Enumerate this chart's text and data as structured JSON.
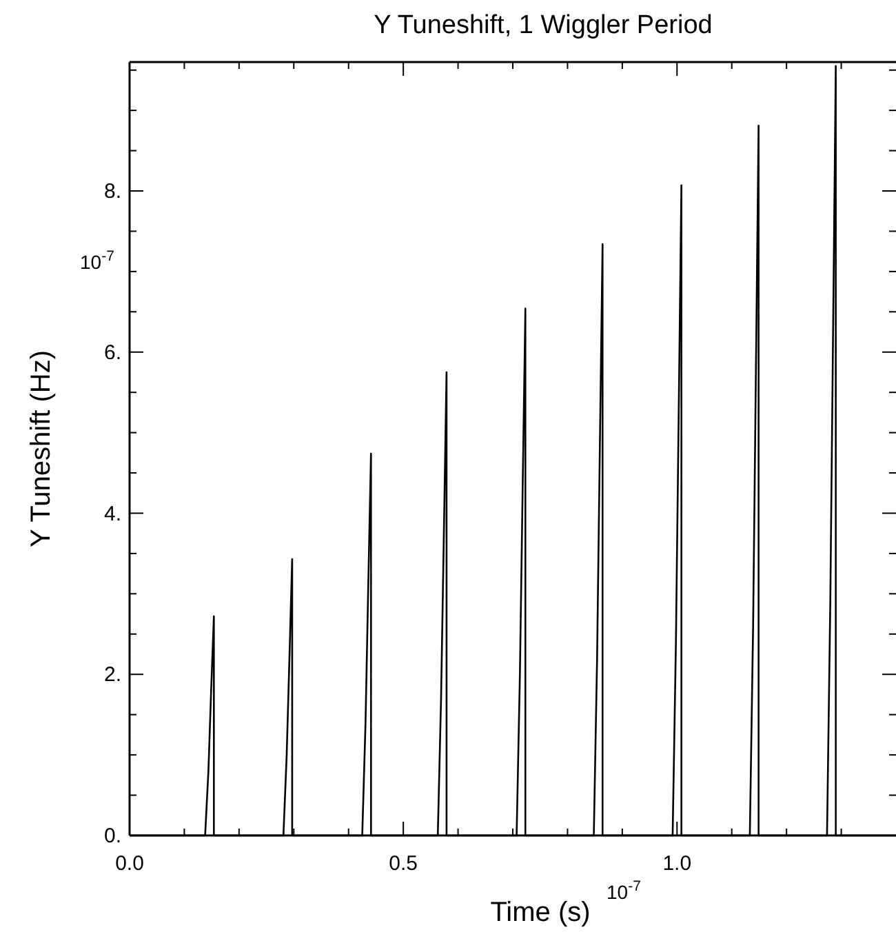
{
  "chart_data": {
    "type": "line",
    "title": "Y Tuneshift, 1 Wiggler Period",
    "xlabel": "Time (s)",
    "ylabel": "Y Tuneshift (Hz)",
    "annotations": [
      "10$^{-7}$",
      "10$^{-7}$"
    ],
    "xlim": [
      0,
      1.4
    ],
    "ylim": [
      0,
      9.6
    ],
    "xticks": [
      {
        "value": 0,
        "label": "0.0"
      },
      {
        "value": 0.1,
        "label": null
      },
      {
        "value": 0.2,
        "label": null
      },
      {
        "value": 0.3,
        "label": null
      },
      {
        "value": 0.4,
        "label": null
      },
      {
        "value": 0.5,
        "label": "0.5"
      },
      {
        "value": 0.6,
        "label": null
      },
      {
        "value": 0.7,
        "label": null
      },
      {
        "value": 0.8,
        "label": null
      },
      {
        "value": 0.9,
        "label": null
      },
      {
        "value": 1.0,
        "label": "1.0"
      },
      {
        "value": 1.1,
        "label": null
      },
      {
        "value": 1.2,
        "label": null
      },
      {
        "value": 1.3,
        "label": null
      }
    ],
    "yticks": [
      {
        "value": 0,
        "label": "0."
      },
      {
        "value": 0.5,
        "label": null
      },
      {
        "value": 1,
        "label": null
      },
      {
        "value": 1.5,
        "label": null
      },
      {
        "value": 2,
        "label": "2."
      },
      {
        "value": 2.5,
        "label": null
      },
      {
        "value": 3,
        "label": null
      },
      {
        "value": 3.5,
        "label": null
      },
      {
        "value": 4,
        "label": "4."
      },
      {
        "value": 4.5,
        "label": null
      },
      {
        "value": 5,
        "label": null
      },
      {
        "value": 5.5,
        "label": null
      },
      {
        "value": 6,
        "label": "6."
      },
      {
        "value": 6.5,
        "label": null
      },
      {
        "value": 7,
        "label": null
      },
      {
        "value": 7.5,
        "label": null
      },
      {
        "value": 8,
        "label": "8."
      },
      {
        "value": 8.5,
        "label": null
      },
      {
        "value": 9,
        "label": null
      },
      {
        "value": 9.5,
        "label": null
      }
    ],
    "grid": false,
    "marker": "none",
    "line_style": "solid",
    "series": [
      {
        "color": "#000000",
        "x": [
          0,
          0.138,
          0.144,
          0.149,
          0.154,
          0.154,
          0.281,
          0.287,
          0.292,
          0.297,
          0.297,
          0.425,
          0.431,
          0.436,
          0.441,
          0.441,
          0.563,
          0.569,
          0.574,
          0.579,
          0.579,
          0.707,
          0.713,
          0.718,
          0.723,
          0.723,
          0.848,
          0.854,
          0.859,
          0.864,
          0.864,
          0.992,
          0.998,
          1.003,
          1.008,
          1.008,
          1.133,
          1.139,
          1.144,
          1.149,
          1.149,
          1.274,
          1.28,
          1.285,
          1.29,
          1.29,
          1.4
        ],
        "values": [
          0,
          0,
          0.8,
          1.8,
          2.72,
          0,
          0,
          1.0,
          2.2,
          3.43,
          0,
          0,
          1.4,
          3.1,
          4.74,
          0,
          0,
          1.7,
          3.7,
          5.75,
          0,
          0,
          2.0,
          4.3,
          6.54,
          0,
          0,
          2.2,
          4.8,
          7.34,
          0,
          0,
          2.4,
          5.2,
          8.07,
          0,
          0,
          2.6,
          5.7,
          8.81,
          0,
          0,
          2.9,
          6.2,
          9.55,
          0,
          0
        ]
      }
    ]
  }
}
